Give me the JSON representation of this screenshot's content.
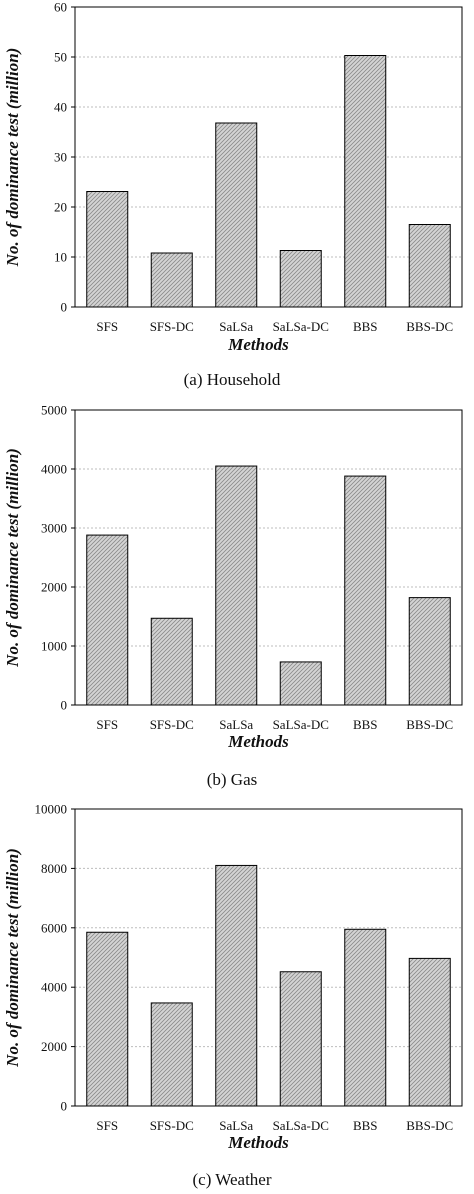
{
  "chart_data": [
    {
      "type": "bar",
      "caption": "(a) Household",
      "categories": [
        "SFS",
        "SFS-DC",
        "SaLSa",
        "SaLSa-DC",
        "BBS",
        "BBS-DC"
      ],
      "values": [
        23.1,
        10.8,
        36.8,
        11.3,
        50.3,
        16.5
      ],
      "xlabel": "Methods",
      "ylabel": "No. of dominance test (million)",
      "ylim": [
        0,
        60
      ],
      "yticks": [
        0,
        10,
        20,
        30,
        40,
        50,
        60
      ],
      "grid": true
    },
    {
      "type": "bar",
      "caption": "(b) Gas",
      "categories": [
        "SFS",
        "SFS-DC",
        "SaLSa",
        "SaLSa-DC",
        "BBS",
        "BBS-DC"
      ],
      "values": [
        2880,
        1470,
        4050,
        730,
        3880,
        1820
      ],
      "xlabel": "Methods",
      "ylabel": "No. of dominance test (million)",
      "ylim": [
        0,
        5000
      ],
      "yticks": [
        0,
        1000,
        2000,
        3000,
        4000,
        5000
      ],
      "grid": true
    },
    {
      "type": "bar",
      "caption": "(c) Weather",
      "categories": [
        "SFS",
        "SFS-DC",
        "SaLSa",
        "SaLSa-DC",
        "BBS",
        "BBS-DC"
      ],
      "values": [
        5850,
        3470,
        8100,
        4520,
        5950,
        4970
      ],
      "xlabel": "Methods",
      "ylabel": "No. of dominance test (million)",
      "ylim": [
        0,
        10000
      ],
      "yticks": [
        0,
        2000,
        4000,
        6000,
        8000,
        10000
      ],
      "grid": true
    }
  ],
  "colors": {
    "bar_fill": "#d4d4d4",
    "bar_hatch": "#8a8a8a",
    "bar_stroke": "#000000",
    "grid": "#bdbdbd",
    "axis": "#000000"
  }
}
